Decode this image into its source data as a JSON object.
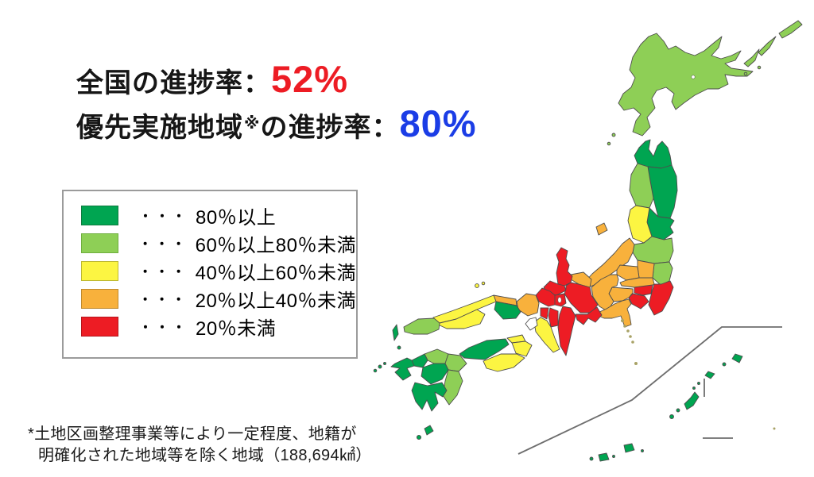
{
  "title": {
    "line1": {
      "label": "全国の進捗率：",
      "value": "52%",
      "value_color": "#ed1c24"
    },
    "line2": {
      "label": "優先実施地域",
      "mark": "※",
      "label2": "の進捗率：",
      "value": "80%",
      "value_color": "#1b3de6"
    }
  },
  "legend": {
    "separator": "・・・",
    "items": [
      {
        "category": "80+",
        "label": "80％以上",
        "color": "#00a551",
        "border": "#0d7a3d"
      },
      {
        "category": "60-80",
        "label": "60％以上80％未満",
        "color": "#8ecf56",
        "border": "#6fae3e"
      },
      {
        "category": "40-60",
        "label": "40％以上60％未満",
        "color": "#fcf542",
        "border": "#bdb831"
      },
      {
        "category": "20-40",
        "label": "20％以上40％未満",
        "color": "#f8b13c",
        "border": "#c08a2e"
      },
      {
        "category": "<20",
        "label": "20％未満",
        "color": "#ed1c24",
        "border": "#b5151b"
      }
    ]
  },
  "footnote": {
    "line1": "*土地区画整理事業等により一定程度、地籍が",
    "line2": "明確化された地域等を除く地域（188,694㎢）"
  },
  "map": {
    "outline_color": "#4d4d4d",
    "inset_line_color": "#6e6e6e",
    "uncolored_fill": "#ffffff",
    "water_fill": "#ffffff",
    "island_dot_color": "#a8a266",
    "regions": [
      {
        "id": "hokkaido",
        "label": "北海道",
        "category": "60-80"
      },
      {
        "id": "aomori",
        "label": "青森県",
        "category": "80+"
      },
      {
        "id": "iwate",
        "label": "岩手県",
        "category": "80+"
      },
      {
        "id": "akita",
        "label": "秋田県",
        "category": "60-80"
      },
      {
        "id": "miyagi",
        "label": "宮城県",
        "category": "80+"
      },
      {
        "id": "yamagata",
        "label": "山形県",
        "category": "40-60"
      },
      {
        "id": "fukushima",
        "label": "福島県",
        "category": "60-80"
      },
      {
        "id": "niigata",
        "label": "新潟県",
        "category": "20-40"
      },
      {
        "id": "sado",
        "label": "佐渡島",
        "category": "20-40"
      },
      {
        "id": "ibaraki",
        "label": "茨城県",
        "category": "60-80"
      },
      {
        "id": "tochigi",
        "label": "栃木県",
        "category": "20-40"
      },
      {
        "id": "gunma",
        "label": "群馬県",
        "category": "20-40"
      },
      {
        "id": "saitama",
        "label": "埼玉県",
        "category": "20-40"
      },
      {
        "id": "chiba",
        "label": "千葉県",
        "category": "<20"
      },
      {
        "id": "tokyo",
        "label": "東京都",
        "category": "<20"
      },
      {
        "id": "kanagawa",
        "label": "神奈川県",
        "category": "<20"
      },
      {
        "id": "yamanashi",
        "label": "山梨県",
        "category": "20-40"
      },
      {
        "id": "nagano",
        "label": "長野県",
        "category": "20-40"
      },
      {
        "id": "shizuoka",
        "label": "静岡県",
        "category": "20-40"
      },
      {
        "id": "toyama",
        "label": "富山県",
        "category": "20-40"
      },
      {
        "id": "ishikawa",
        "label": "石川県",
        "category": "<20"
      },
      {
        "id": "fukui",
        "label": "福井県",
        "category": "<20"
      },
      {
        "id": "gifu",
        "label": "岐阜県",
        "category": "<20"
      },
      {
        "id": "aichi",
        "label": "愛知県",
        "category": "<20"
      },
      {
        "id": "shiga",
        "label": "滋賀県",
        "category": "<20"
      },
      {
        "id": "mie",
        "label": "三重県",
        "category": "<20"
      },
      {
        "id": "kyoto",
        "label": "京都府",
        "category": "<20"
      },
      {
        "id": "nara",
        "label": "奈良県",
        "category": "<20"
      },
      {
        "id": "osaka",
        "label": "大阪府",
        "category": "<20"
      },
      {
        "id": "wakayama",
        "label": "和歌山県",
        "category": "40-60"
      },
      {
        "id": "hyogo",
        "label": "兵庫県",
        "category": "20-40"
      },
      {
        "id": "awaji",
        "label": "淡路島",
        "category": "none"
      },
      {
        "id": "tottori",
        "label": "鳥取県",
        "category": "20-40"
      },
      {
        "id": "okayama",
        "label": "岡山県",
        "category": "80+"
      },
      {
        "id": "shimane",
        "label": "島根県",
        "category": "40-60"
      },
      {
        "id": "hiroshima",
        "label": "広島県",
        "category": "40-60"
      },
      {
        "id": "yamaguchi",
        "label": "山口県",
        "category": "60-80"
      },
      {
        "id": "kagawa",
        "label": "香川県",
        "category": "40-60"
      },
      {
        "id": "tokushima",
        "label": "徳島県",
        "category": "40-60"
      },
      {
        "id": "ehime",
        "label": "愛媛県",
        "category": "80+"
      },
      {
        "id": "kochi",
        "label": "高知県",
        "category": "40-60"
      },
      {
        "id": "fukuoka",
        "label": "福岡県",
        "category": "60-80"
      },
      {
        "id": "saga",
        "label": "佐賀県",
        "category": "80+"
      },
      {
        "id": "nagasaki",
        "label": "長崎県",
        "category": "80+"
      },
      {
        "id": "tsushima",
        "label": "対馬",
        "category": "80+"
      },
      {
        "id": "oita",
        "label": "大分県",
        "category": "60-80"
      },
      {
        "id": "kumamoto",
        "label": "熊本県",
        "category": "80+"
      },
      {
        "id": "miyazaki",
        "label": "宮崎県",
        "category": "60-80"
      },
      {
        "id": "kagoshima",
        "label": "鹿児島県",
        "category": "80+"
      },
      {
        "id": "okinawa",
        "label": "沖縄県",
        "category": "80+"
      }
    ]
  }
}
